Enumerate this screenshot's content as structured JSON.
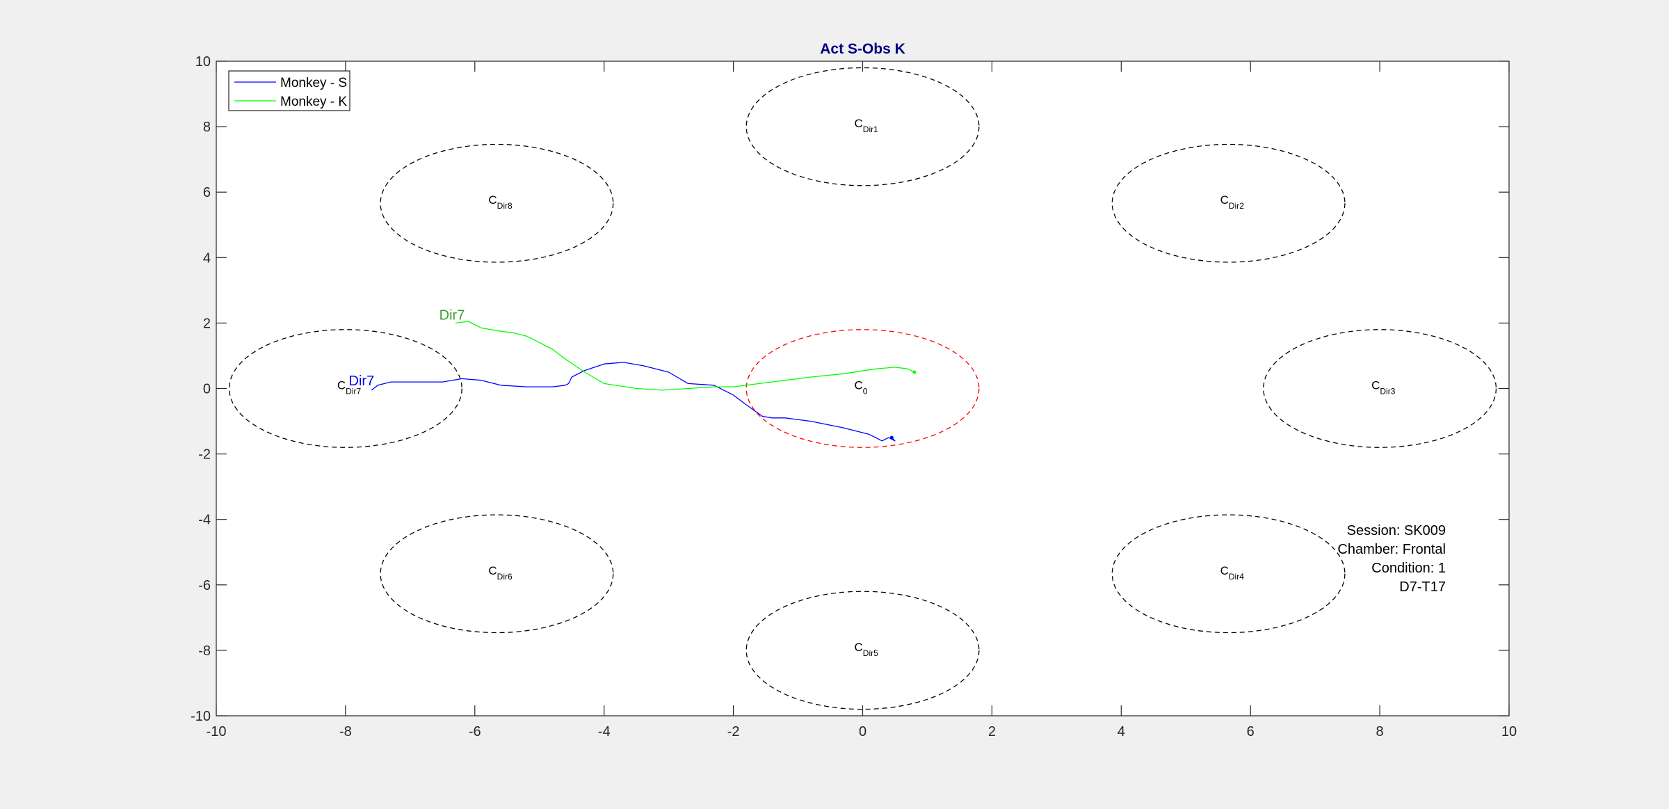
{
  "chart_data": {
    "type": "line",
    "title": "Act S-Obs K",
    "xlabel": "",
    "ylabel": "",
    "xlim": [
      -10,
      10
    ],
    "ylim": [
      -10,
      10
    ],
    "x_ticks": [
      -10,
      -8,
      -6,
      -4,
      -2,
      0,
      2,
      4,
      6,
      8,
      10
    ],
    "y_ticks": [
      -10,
      -8,
      -6,
      -4,
      -2,
      0,
      2,
      4,
      6,
      8,
      10
    ],
    "grid": false,
    "legend_position": "top-left",
    "legend": [
      {
        "label": "Monkey - S",
        "color": "#0000ff"
      },
      {
        "label": "Monkey - K",
        "color": "#00ff00"
      }
    ],
    "circles": [
      {
        "base": "C",
        "sub": "Dir1",
        "cx": 0,
        "cy": 8,
        "rx": 1.8,
        "ry": 1.8,
        "color": "#000000"
      },
      {
        "base": "C",
        "sub": "Dir2",
        "cx": 5.66,
        "cy": 5.66,
        "rx": 1.8,
        "ry": 1.8,
        "color": "#000000"
      },
      {
        "base": "C",
        "sub": "Dir3",
        "cx": 8,
        "cy": 0,
        "rx": 1.8,
        "ry": 1.8,
        "color": "#000000"
      },
      {
        "base": "C",
        "sub": "Dir4",
        "cx": 5.66,
        "cy": -5.66,
        "rx": 1.8,
        "ry": 1.8,
        "color": "#000000"
      },
      {
        "base": "C",
        "sub": "Dir5",
        "cx": 0,
        "cy": -8,
        "rx": 1.8,
        "ry": 1.8,
        "color": "#000000"
      },
      {
        "base": "C",
        "sub": "Dir6",
        "cx": -5.66,
        "cy": -5.66,
        "rx": 1.8,
        "ry": 1.8,
        "color": "#000000"
      },
      {
        "base": "C",
        "sub": "Dir7",
        "cx": -8,
        "cy": 0,
        "rx": 1.8,
        "ry": 1.8,
        "color": "#000000"
      },
      {
        "base": "C",
        "sub": "Dir8",
        "cx": -5.66,
        "cy": 5.66,
        "rx": 1.8,
        "ry": 1.8,
        "color": "#000000"
      },
      {
        "base": "C",
        "sub": "0",
        "cx": 0,
        "cy": 0,
        "rx": 1.8,
        "ry": 1.8,
        "color": "#ff0000"
      }
    ],
    "series": [
      {
        "name": "Monkey - S",
        "color": "#0000ff",
        "x": [
          0.45,
          0.5,
          0.4,
          0.3,
          0.1,
          -0.3,
          -0.8,
          -1.2,
          -1.4,
          -1.55,
          -1.8,
          -1.9,
          -2.0,
          -2.3,
          -2.7,
          -3.0,
          -3.4,
          -3.7,
          -4.0,
          -4.3,
          -4.5,
          -4.55,
          -4.6,
          -4.8,
          -5.2,
          -5.6,
          -5.9,
          -6.2,
          -6.5,
          -6.8,
          -7.0,
          -7.3,
          -7.5,
          -7.6
        ],
        "y": [
          -1.5,
          -1.6,
          -1.5,
          -1.6,
          -1.4,
          -1.2,
          -1.0,
          -0.9,
          -0.9,
          -0.85,
          -0.5,
          -0.35,
          -0.2,
          0.1,
          0.15,
          0.5,
          0.7,
          0.8,
          0.75,
          0.55,
          0.35,
          0.15,
          0.1,
          0.05,
          0.05,
          0.1,
          0.25,
          0.3,
          0.2,
          0.2,
          0.2,
          0.2,
          0.1,
          -0.05
        ]
      },
      {
        "name": "Monkey - K",
        "color": "#00ff00",
        "x": [
          0.8,
          0.7,
          0.5,
          0.2,
          -0.3,
          -0.8,
          -1.2,
          -1.6,
          -1.8,
          -2.0,
          -2.3,
          -2.7,
          -3.1,
          -3.5,
          -4.0,
          -4.3,
          -4.6,
          -4.8,
          -5.0,
          -5.2,
          -5.4,
          -5.6,
          -5.9,
          -6.1,
          -6.3
        ],
        "y": [
          0.5,
          0.6,
          0.65,
          0.6,
          0.45,
          0.35,
          0.25,
          0.15,
          0.1,
          0.05,
          0.05,
          0.0,
          -0.05,
          0.0,
          0.15,
          0.5,
          0.9,
          1.2,
          1.4,
          1.6,
          1.7,
          1.75,
          1.85,
          2.05,
          2.0
        ]
      }
    ],
    "annotations": [
      {
        "text": "Dir7",
        "x": -6.55,
        "y": 2.1,
        "color": "#33a033"
      },
      {
        "text": "Dir7",
        "x": -7.95,
        "y": 0.1,
        "color": "#0000ff"
      }
    ],
    "info": [
      "Session: SK009",
      "Chamber: Frontal",
      "Condition: 1",
      "D7-T17"
    ]
  }
}
